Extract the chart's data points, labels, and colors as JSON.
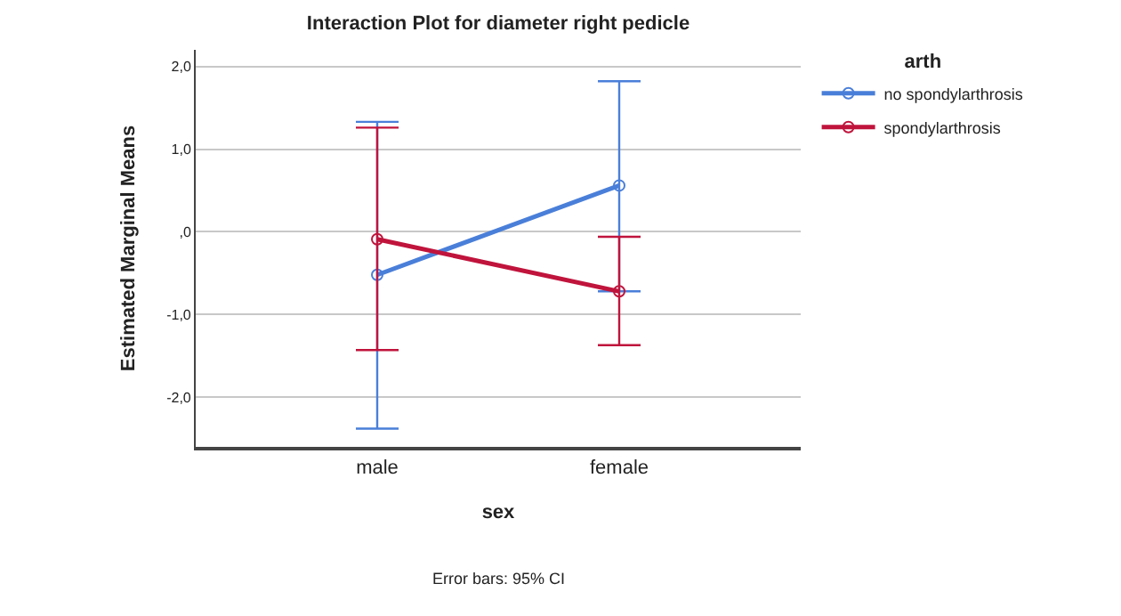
{
  "chart_data": {
    "type": "line",
    "title": "Interaction Plot for diameter right pedicle",
    "xlabel": "sex",
    "ylabel": "Estimated Marginal Means",
    "legend_title": "arth",
    "categories": [
      "male",
      "female"
    ],
    "series": [
      {
        "name": "no spondylarthrosis",
        "color": "#4a7fd9",
        "values": [
          -0.52,
          0.56
        ],
        "errors": [
          [
            -2.38,
            1.33
          ],
          [
            -0.72,
            1.82
          ]
        ]
      },
      {
        "name": "spondylarthrosis",
        "color": "#c0143c",
        "values": [
          -0.09,
          -0.72
        ],
        "errors": [
          [
            -1.43,
            1.26
          ],
          [
            -1.37,
            -0.06
          ]
        ]
      }
    ],
    "ylim": [
      -2.6,
      2.2
    ],
    "yticks": [
      {
        "value": 2,
        "label": "2,0"
      },
      {
        "value": 1,
        "label": "1,0"
      },
      {
        "value": 0,
        "label": ",0"
      },
      {
        "value": -1,
        "label": "-1,0"
      },
      {
        "value": -2,
        "label": "-2,0"
      }
    ],
    "grid": "y",
    "legend": "top right",
    "marker": "circle",
    "line_style": "solid",
    "annotations": [
      "Error bars: 95% CI"
    ]
  }
}
